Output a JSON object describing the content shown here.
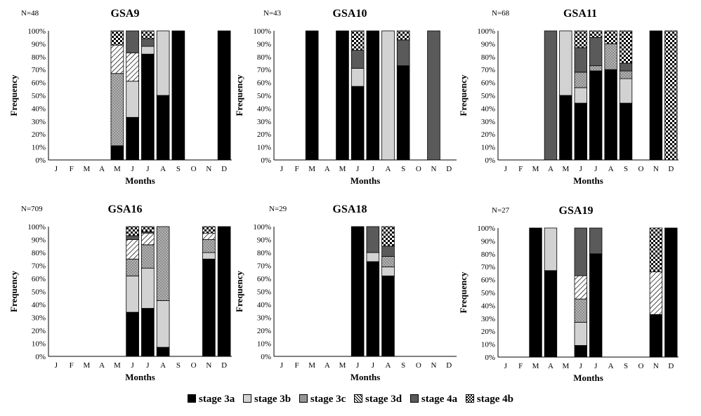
{
  "figure": {
    "x_tick_labels": [
      "J",
      "F",
      "M",
      "A",
      "M",
      "J",
      "J",
      "A",
      "S",
      "O",
      "N",
      "D"
    ],
    "y_tick_labels": [
      "0%",
      "10%",
      "20%",
      "30%",
      "40%",
      "50%",
      "60%",
      "70%",
      "80%",
      "90%",
      "100%"
    ],
    "xlabel": "Months",
    "ylabel": "Frequency"
  },
  "legend": [
    {
      "key": "s3a",
      "label": "stage 3a",
      "fill": "#000000"
    },
    {
      "key": "s3b",
      "label": "stage 3b",
      "fill": "#d2d2d2"
    },
    {
      "key": "s3c",
      "label": "stage 3c",
      "fill": "dots"
    },
    {
      "key": "s3d",
      "label": "stage 3d",
      "fill": "hatch"
    },
    {
      "key": "s4a",
      "label": "stage 4a",
      "fill": "#5a5a5a"
    },
    {
      "key": "s4b",
      "label": "stage 4b",
      "fill": "checker"
    }
  ],
  "chart_data": [
    {
      "type": "bar",
      "stacked": true,
      "title": "GSA9",
      "n_label": "N=48",
      "ylim": [
        0,
        100
      ],
      "categories": [
        "J",
        "F",
        "M",
        "A",
        "M",
        "J",
        "J",
        "A",
        "S",
        "O",
        "N",
        "D"
      ],
      "bars": [
        {
          "month": 5,
          "stages": {
            "s3a": 11,
            "s3c": 56,
            "s3d": 22,
            "s4b": 11
          }
        },
        {
          "month": 6,
          "stages": {
            "s3a": 33,
            "s3b": 28,
            "s3d": 22,
            "s4a": 17
          }
        },
        {
          "month": 7,
          "stages": {
            "s3a": 82,
            "s3b": 6,
            "s4a": 6,
            "s4b": 6
          }
        },
        {
          "month": 8,
          "stages": {
            "s3a": 50,
            "s3b": 50
          }
        },
        {
          "month": 9,
          "stages": {
            "s3a": 100
          }
        },
        {
          "month": 12,
          "stages": {
            "s3a": 100
          }
        }
      ]
    },
    {
      "type": "bar",
      "stacked": true,
      "title": "GSA10",
      "n_label": "N=43",
      "ylim": [
        0,
        100
      ],
      "categories": [
        "J",
        "F",
        "M",
        "A",
        "M",
        "J",
        "J",
        "A",
        "S",
        "O",
        "N",
        "D"
      ],
      "bars": [
        {
          "month": 3,
          "stages": {
            "s3a": 100
          }
        },
        {
          "month": 5,
          "stages": {
            "s3a": 100
          }
        },
        {
          "month": 6,
          "stages": {
            "s3a": 57,
            "s3b": 14,
            "s4a": 14,
            "s4b": 15
          }
        },
        {
          "month": 7,
          "stages": {
            "s3a": 100
          }
        },
        {
          "month": 8,
          "stages": {
            "s3b": 100
          }
        },
        {
          "month": 9,
          "stages": {
            "s3a": 73,
            "s4a": 20,
            "s4b": 7
          }
        },
        {
          "month": 11,
          "stages": {
            "s4a": 100
          }
        }
      ]
    },
    {
      "type": "bar",
      "stacked": true,
      "title": "GSA11",
      "n_label": "N=68",
      "ylim": [
        0,
        100
      ],
      "categories": [
        "J",
        "F",
        "M",
        "A",
        "M",
        "J",
        "J",
        "A",
        "S",
        "O",
        "N",
        "D"
      ],
      "bars": [
        {
          "month": 4,
          "stages": {
            "s4a": 100
          }
        },
        {
          "month": 5,
          "stages": {
            "s3a": 50,
            "s3b": 50
          }
        },
        {
          "month": 6,
          "stages": {
            "s3a": 44,
            "s3b": 12,
            "s3c": 12,
            "s4a": 19,
            "s4b": 13
          }
        },
        {
          "month": 7,
          "stages": {
            "s3a": 69,
            "s3c": 4,
            "s4a": 22,
            "s4b": 5
          }
        },
        {
          "month": 8,
          "stages": {
            "s3a": 70,
            "s3c": 20,
            "s4b": 10
          }
        },
        {
          "month": 9,
          "stages": {
            "s3a": 44,
            "s3b": 19,
            "s3c": 6,
            "s4a": 6,
            "s4b": 25
          }
        },
        {
          "month": 11,
          "stages": {
            "s3a": 100
          }
        },
        {
          "month": 12,
          "stages": {
            "s4b": 100
          }
        }
      ]
    },
    {
      "type": "bar",
      "stacked": true,
      "title": "GSA16",
      "n_label": "N=709",
      "ylim": [
        0,
        100
      ],
      "categories": [
        "J",
        "F",
        "M",
        "A",
        "M",
        "J",
        "J",
        "A",
        "S",
        "O",
        "N",
        "D"
      ],
      "bars": [
        {
          "month": 6,
          "stages": {
            "s3a": 34,
            "s3b": 28,
            "s3c": 13,
            "s3d": 15,
            "s4a": 3,
            "s4b": 7
          }
        },
        {
          "month": 7,
          "stages": {
            "s3a": 37,
            "s3b": 31,
            "s3c": 18,
            "s3d": 9,
            "s4a": 1,
            "s4b": 4
          }
        },
        {
          "month": 8,
          "stages": {
            "s3a": 7,
            "s3b": 36,
            "s3c": 57
          }
        },
        {
          "month": 11,
          "stages": {
            "s3a": 75,
            "s3b": 5,
            "s3c": 10,
            "s3d": 5,
            "s4b": 5
          }
        },
        {
          "month": 12,
          "stages": {
            "s3a": 100
          }
        }
      ]
    },
    {
      "type": "bar",
      "stacked": true,
      "title": "GSA18",
      "n_label": "N=29",
      "ylim": [
        0,
        100
      ],
      "categories": [
        "J",
        "F",
        "M",
        "A",
        "M",
        "J",
        "J",
        "A",
        "S",
        "O",
        "N",
        "D"
      ],
      "bars": [
        {
          "month": 6,
          "stages": {
            "s3a": 100
          }
        },
        {
          "month": 7,
          "stages": {
            "s3a": 73,
            "s3b": 7,
            "s4a": 20
          }
        },
        {
          "month": 8,
          "stages": {
            "s3a": 62,
            "s3b": 7,
            "s3c": 8,
            "s4a": 8,
            "s4b": 15
          }
        }
      ]
    },
    {
      "type": "bar",
      "stacked": true,
      "title": "GSA19",
      "n_label": "N=27",
      "ylim": [
        0,
        100
      ],
      "categories": [
        "J",
        "F",
        "M",
        "A",
        "M",
        "J",
        "J",
        "A",
        "S",
        "O",
        "N",
        "D"
      ],
      "bars": [
        {
          "month": 3,
          "stages": {
            "s3a": 100
          }
        },
        {
          "month": 4,
          "stages": {
            "s3a": 67,
            "s3b": 33
          }
        },
        {
          "month": 6,
          "stages": {
            "s3a": 9,
            "s3b": 18,
            "s3c": 18,
            "s3d": 18,
            "s4a": 37
          }
        },
        {
          "month": 7,
          "stages": {
            "s3a": 80,
            "s4a": 20
          }
        },
        {
          "month": 11,
          "stages": {
            "s3a": 33,
            "s3d": 33,
            "s4b": 34
          }
        },
        {
          "month": 12,
          "stages": {
            "s3a": 100
          }
        }
      ]
    }
  ]
}
